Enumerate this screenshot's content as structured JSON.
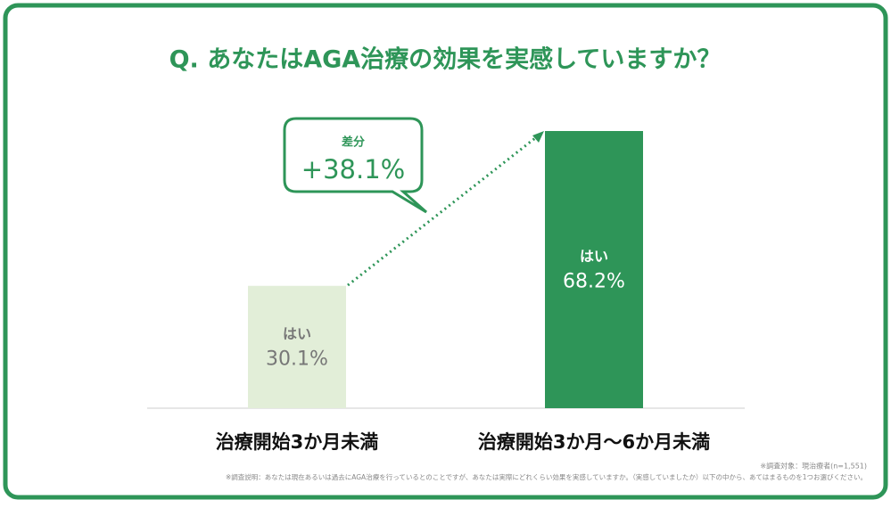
{
  "chart_data": {
    "type": "bar",
    "title": "Q. あなたはAGA治療の効果を実感していますか？",
    "categories": [
      "治療開始3か月未満",
      "治療開始3か月〜6か月未満"
    ],
    "values": [
      30.1,
      68.2
    ],
    "value_labels": [
      "30.1%",
      "68.2%"
    ],
    "bar_label": "はい",
    "colors": [
      "#e2eed8",
      "#2e9558"
    ],
    "label_colors": [
      "#777777",
      "#ffffff"
    ],
    "annotation": {
      "label": "差分",
      "text": "+38.1%"
    },
    "notes": [
      "※調査対象：現治療者(n=1,551)",
      "※調査説明：あなたは現在あるいは過去にAGA治療を行っているとのことですが、あなたは実際にどれくらい効果を実感していますか。（実感していましたか）以下の中から、あてはまるものを1つお選びください。"
    ]
  }
}
